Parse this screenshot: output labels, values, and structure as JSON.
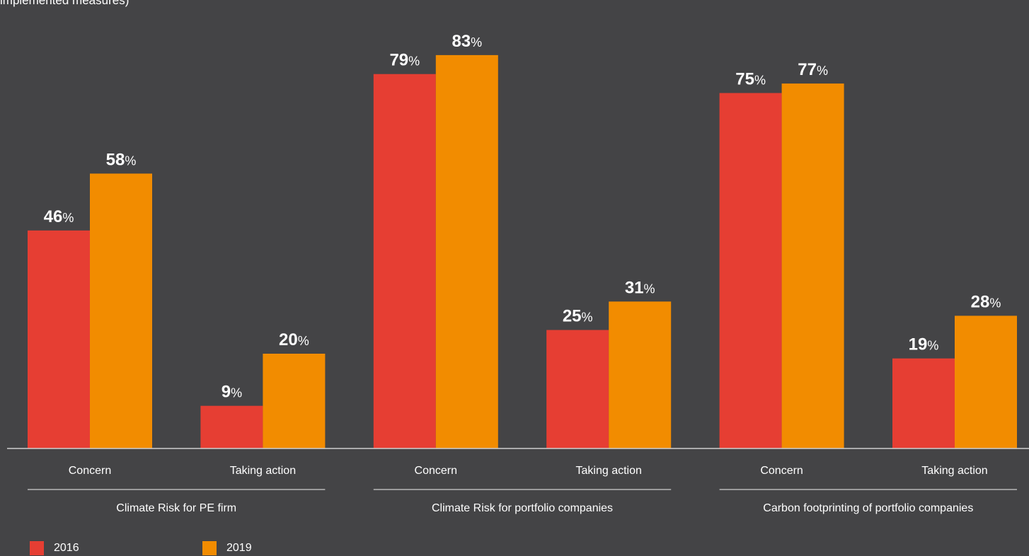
{
  "note": "implemented measures)",
  "chart_data": {
    "type": "bar",
    "categories": [
      "Concern",
      "Taking action",
      "Concern",
      "Taking action",
      "Concern",
      "Taking action"
    ],
    "groups": [
      {
        "label": "Climate Risk for PE firm",
        "categories": [
          "Concern",
          "Taking action"
        ]
      },
      {
        "label": "Climate Risk for portfolio companies",
        "categories": [
          "Concern",
          "Taking action"
        ]
      },
      {
        "label": "Carbon footprinting of portfolio companies",
        "categories": [
          "Concern",
          "Taking action"
        ]
      }
    ],
    "series": [
      {
        "name": "2016",
        "color": "#e63e33",
        "values": [
          46,
          9,
          79,
          25,
          75,
          19
        ]
      },
      {
        "name": "2019",
        "color": "#f28c00",
        "values": [
          58,
          20,
          83,
          31,
          77,
          28
        ]
      }
    ],
    "value_suffix": "%",
    "ylim": [
      0,
      100
    ],
    "grid": false,
    "legend_position": "bottom-left"
  },
  "colors": {
    "background": "#444446",
    "text": "#ffffff",
    "axis": "#cfcfcf"
  }
}
